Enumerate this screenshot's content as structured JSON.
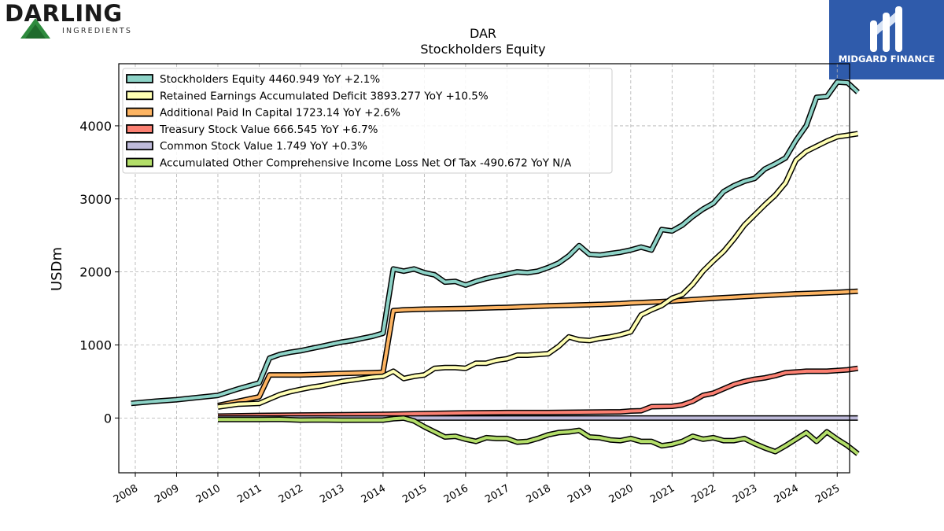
{
  "logos": {
    "left_word": "DARLING",
    "left_sub": "INGREDIENTS",
    "right_text": "MIDGARD FINANCE"
  },
  "chart_data": {
    "type": "line",
    "title": "DAR",
    "subtitle": "Stockholders  Equity",
    "ylabel": "USDm",
    "xlabel": "",
    "xlim": [
      2007.6,
      2025.3
    ],
    "ylim": [
      -750,
      4850
    ],
    "xticks": [
      2008,
      2009,
      2010,
      2011,
      2012,
      2013,
      2014,
      2015,
      2016,
      2017,
      2018,
      2019,
      2020,
      2021,
      2022,
      2023,
      2024,
      2025
    ],
    "yticks": [
      0,
      1000,
      2000,
      3000,
      4000
    ],
    "grid": true,
    "legend_position": "top-left",
    "series": [
      {
        "name": "Stockholders Equity",
        "legend": "Stockholders Equity  4460.949 YoY +2.1%",
        "color": "#8dd3c7",
        "points": [
          [
            2007.9,
            200
          ],
          [
            2008.5,
            230
          ],
          [
            2009.0,
            250
          ],
          [
            2010.0,
            310
          ],
          [
            2010.5,
            400
          ],
          [
            2011.0,
            480
          ],
          [
            2011.25,
            820
          ],
          [
            2011.5,
            870
          ],
          [
            2011.75,
            900
          ],
          [
            2012.0,
            920
          ],
          [
            2012.25,
            950
          ],
          [
            2012.5,
            980
          ],
          [
            2012.75,
            1010
          ],
          [
            2013.0,
            1040
          ],
          [
            2013.25,
            1060
          ],
          [
            2013.5,
            1090
          ],
          [
            2013.75,
            1120
          ],
          [
            2014.0,
            1160
          ],
          [
            2014.25,
            2040
          ],
          [
            2014.5,
            2010
          ],
          [
            2014.75,
            2040
          ],
          [
            2015.0,
            1990
          ],
          [
            2015.25,
            1960
          ],
          [
            2015.5,
            1860
          ],
          [
            2015.75,
            1870
          ],
          [
            2016.0,
            1820
          ],
          [
            2016.25,
            1870
          ],
          [
            2016.5,
            1910
          ],
          [
            2016.75,
            1940
          ],
          [
            2017.0,
            1970
          ],
          [
            2017.25,
            2000
          ],
          [
            2017.5,
            1990
          ],
          [
            2017.75,
            2010
          ],
          [
            2018.0,
            2060
          ],
          [
            2018.25,
            2120
          ],
          [
            2018.5,
            2220
          ],
          [
            2018.75,
            2360
          ],
          [
            2019.0,
            2240
          ],
          [
            2019.25,
            2230
          ],
          [
            2019.5,
            2250
          ],
          [
            2019.75,
            2270
          ],
          [
            2020.0,
            2300
          ],
          [
            2020.25,
            2340
          ],
          [
            2020.5,
            2300
          ],
          [
            2020.75,
            2580
          ],
          [
            2021.0,
            2560
          ],
          [
            2021.25,
            2640
          ],
          [
            2021.5,
            2760
          ],
          [
            2021.75,
            2860
          ],
          [
            2022.0,
            2940
          ],
          [
            2022.25,
            3100
          ],
          [
            2022.5,
            3180
          ],
          [
            2022.75,
            3240
          ],
          [
            2023.0,
            3280
          ],
          [
            2023.25,
            3410
          ],
          [
            2023.5,
            3480
          ],
          [
            2023.75,
            3560
          ],
          [
            2024.0,
            3800
          ],
          [
            2024.25,
            4000
          ],
          [
            2024.5,
            4390
          ],
          [
            2024.75,
            4400
          ],
          [
            2025.0,
            4600
          ],
          [
            2025.25,
            4590
          ],
          [
            2025.5,
            4460
          ]
        ]
      },
      {
        "name": "Retained Earnings Accumulated Deficit",
        "legend": "Retained Earnings Accumulated Deficit  3893.277 YoY +10.5%",
        "color": "#ffffb3",
        "points": [
          [
            2010.0,
            150
          ],
          [
            2010.5,
            190
          ],
          [
            2011.0,
            200
          ],
          [
            2011.25,
            260
          ],
          [
            2011.5,
            320
          ],
          [
            2011.75,
            360
          ],
          [
            2012.0,
            390
          ],
          [
            2012.25,
            420
          ],
          [
            2012.5,
            440
          ],
          [
            2012.75,
            470
          ],
          [
            2013.0,
            500
          ],
          [
            2013.25,
            520
          ],
          [
            2013.5,
            540
          ],
          [
            2013.75,
            560
          ],
          [
            2014.0,
            570
          ],
          [
            2014.25,
            640
          ],
          [
            2014.5,
            540
          ],
          [
            2014.75,
            570
          ],
          [
            2015.0,
            590
          ],
          [
            2015.25,
            680
          ],
          [
            2015.5,
            690
          ],
          [
            2015.75,
            690
          ],
          [
            2016.0,
            680
          ],
          [
            2016.25,
            750
          ],
          [
            2016.5,
            750
          ],
          [
            2016.75,
            790
          ],
          [
            2017.0,
            810
          ],
          [
            2017.25,
            860
          ],
          [
            2017.5,
            860
          ],
          [
            2017.75,
            870
          ],
          [
            2018.0,
            880
          ],
          [
            2018.25,
            980
          ],
          [
            2018.5,
            1110
          ],
          [
            2018.75,
            1070
          ],
          [
            2019.0,
            1060
          ],
          [
            2019.25,
            1090
          ],
          [
            2019.5,
            1110
          ],
          [
            2019.75,
            1140
          ],
          [
            2020.0,
            1180
          ],
          [
            2020.25,
            1410
          ],
          [
            2020.5,
            1480
          ],
          [
            2020.75,
            1540
          ],
          [
            2021.0,
            1640
          ],
          [
            2021.25,
            1690
          ],
          [
            2021.5,
            1830
          ],
          [
            2021.75,
            2010
          ],
          [
            2022.0,
            2150
          ],
          [
            2022.25,
            2280
          ],
          [
            2022.5,
            2450
          ],
          [
            2022.75,
            2640
          ],
          [
            2023.0,
            2780
          ],
          [
            2023.25,
            2920
          ],
          [
            2023.5,
            3050
          ],
          [
            2023.75,
            3220
          ],
          [
            2024.0,
            3530
          ],
          [
            2024.25,
            3650
          ],
          [
            2024.5,
            3720
          ],
          [
            2024.75,
            3790
          ],
          [
            2025.0,
            3850
          ],
          [
            2025.25,
            3870
          ],
          [
            2025.5,
            3893
          ]
        ]
      },
      {
        "name": "Additional Paid In Capital",
        "legend": "Additional Paid In Capital  1723.14 YoY +2.6%",
        "color": "#fdb462",
        "points": [
          [
            2010.0,
            170
          ],
          [
            2011.0,
            290
          ],
          [
            2011.25,
            590
          ],
          [
            2012.0,
            590
          ],
          [
            2013.0,
            610
          ],
          [
            2013.75,
            620
          ],
          [
            2014.0,
            625
          ],
          [
            2014.25,
            1470
          ],
          [
            2014.5,
            1480
          ],
          [
            2015.0,
            1490
          ],
          [
            2016.0,
            1500
          ],
          [
            2017.0,
            1515
          ],
          [
            2018.0,
            1535
          ],
          [
            2019.0,
            1550
          ],
          [
            2019.75,
            1565
          ],
          [
            2020.0,
            1575
          ],
          [
            2020.25,
            1580
          ],
          [
            2021.0,
            1600
          ],
          [
            2021.5,
            1620
          ],
          [
            2022.0,
            1640
          ],
          [
            2022.5,
            1655
          ],
          [
            2023.0,
            1670
          ],
          [
            2023.5,
            1685
          ],
          [
            2024.0,
            1700
          ],
          [
            2024.5,
            1710
          ],
          [
            2025.0,
            1720
          ],
          [
            2025.5,
            1735
          ]
        ]
      },
      {
        "name": "Treasury Stock Value",
        "legend": "Treasury Stock Value  666.545 YoY +6.7%",
        "color": "#fb8072",
        "points": [
          [
            2010.0,
            25
          ],
          [
            2011.0,
            35
          ],
          [
            2012.0,
            40
          ],
          [
            2013.0,
            45
          ],
          [
            2014.0,
            50
          ],
          [
            2015.0,
            60
          ],
          [
            2016.0,
            70
          ],
          [
            2017.0,
            75
          ],
          [
            2018.0,
            75
          ],
          [
            2019.0,
            80
          ],
          [
            2019.75,
            85
          ],
          [
            2020.0,
            95
          ],
          [
            2020.25,
            100
          ],
          [
            2020.5,
            155
          ],
          [
            2021.0,
            160
          ],
          [
            2021.25,
            180
          ],
          [
            2021.5,
            230
          ],
          [
            2021.75,
            310
          ],
          [
            2022.0,
            340
          ],
          [
            2022.25,
            400
          ],
          [
            2022.5,
            460
          ],
          [
            2022.75,
            500
          ],
          [
            2023.0,
            530
          ],
          [
            2023.25,
            550
          ],
          [
            2023.5,
            580
          ],
          [
            2023.75,
            620
          ],
          [
            2024.0,
            630
          ],
          [
            2024.25,
            640
          ],
          [
            2024.5,
            640
          ],
          [
            2024.75,
            640
          ],
          [
            2025.0,
            650
          ],
          [
            2025.25,
            660
          ],
          [
            2025.5,
            680
          ]
        ]
      },
      {
        "name": "Common Stock Value",
        "legend": "Common Stock Value  1.749 YoY +0.3%",
        "color": "#bebada",
        "points": [
          [
            2010.0,
            0
          ],
          [
            2025.5,
            0
          ]
        ]
      },
      {
        "name": "Accumulated Other Comprehensive Income Loss Net Of Tax",
        "legend": "Accumulated Other Comprehensive Income Loss Net Of Tax  -490.672 YoY N/A",
        "color": "#b3de69",
        "points": [
          [
            2010.0,
            -20
          ],
          [
            2011.0,
            -20
          ],
          [
            2011.5,
            -18
          ],
          [
            2012.0,
            -28
          ],
          [
            2012.5,
            -25
          ],
          [
            2013.0,
            -30
          ],
          [
            2014.0,
            -28
          ],
          [
            2014.25,
            -10
          ],
          [
            2014.5,
            0
          ],
          [
            2014.75,
            -40
          ],
          [
            2015.0,
            -120
          ],
          [
            2015.25,
            -190
          ],
          [
            2015.5,
            -260
          ],
          [
            2015.75,
            -250
          ],
          [
            2016.0,
            -290
          ],
          [
            2016.25,
            -320
          ],
          [
            2016.5,
            -270
          ],
          [
            2016.75,
            -280
          ],
          [
            2017.0,
            -280
          ],
          [
            2017.25,
            -330
          ],
          [
            2017.5,
            -320
          ],
          [
            2017.75,
            -280
          ],
          [
            2018.0,
            -230
          ],
          [
            2018.25,
            -200
          ],
          [
            2018.5,
            -190
          ],
          [
            2018.75,
            -170
          ],
          [
            2019.0,
            -260
          ],
          [
            2019.25,
            -270
          ],
          [
            2019.5,
            -300
          ],
          [
            2019.75,
            -310
          ],
          [
            2020.0,
            -280
          ],
          [
            2020.25,
            -320
          ],
          [
            2020.5,
            -320
          ],
          [
            2020.75,
            -380
          ],
          [
            2021.0,
            -360
          ],
          [
            2021.25,
            -320
          ],
          [
            2021.5,
            -250
          ],
          [
            2021.75,
            -290
          ],
          [
            2022.0,
            -270
          ],
          [
            2022.25,
            -310
          ],
          [
            2022.5,
            -310
          ],
          [
            2022.75,
            -280
          ],
          [
            2023.0,
            -350
          ],
          [
            2023.25,
            -410
          ],
          [
            2023.5,
            -460
          ],
          [
            2023.75,
            -380
          ],
          [
            2024.0,
            -290
          ],
          [
            2024.25,
            -200
          ],
          [
            2024.5,
            -320
          ],
          [
            2024.75,
            -190
          ],
          [
            2025.0,
            -290
          ],
          [
            2025.25,
            -380
          ],
          [
            2025.5,
            -490
          ]
        ]
      }
    ]
  }
}
